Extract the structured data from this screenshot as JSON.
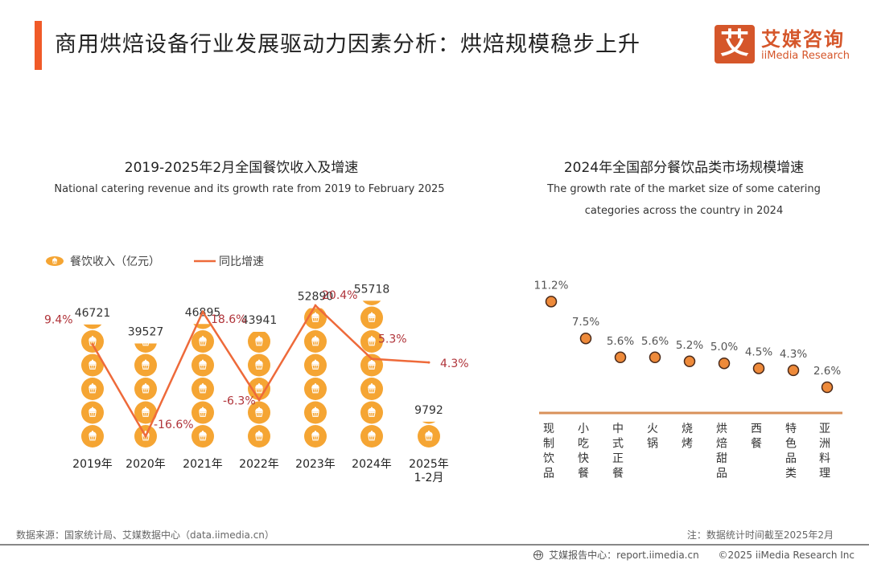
{
  "header": {
    "title": "商用烘焙设备行业发展驱动力因素分析：烘焙规模稳步上升",
    "logo_glyph": "艾",
    "logo_cn": "艾媒咨询",
    "logo_en": "iiMedia Research"
  },
  "colors": {
    "accent": "#f05a28",
    "bar_icon": "#f5a533",
    "line": "#ee6a3a",
    "rate_label": "#b0343a",
    "dot_fill": "#ee8a3a",
    "dot_stroke": "#4a2a1a",
    "axis": "#d9915a"
  },
  "chart_data": [
    {
      "type": "bar",
      "title": "2019-2025年2月全国餐饮收入及增速",
      "subtitle": "National catering revenue and its growth rate from 2019 to February 2025",
      "legend": [
        {
          "name": "餐饮收入（亿元）",
          "marker": "cupcake-icon"
        },
        {
          "name": "同比增速",
          "marker": "line"
        }
      ],
      "legend_position": "top-left",
      "categories": [
        "2019年",
        "2020年",
        "2021年",
        "2022年",
        "2023年",
        "2024年",
        "2025年\n1-2月"
      ],
      "category_labels": [
        [
          "2019年"
        ],
        [
          "2020年"
        ],
        [
          "2021年"
        ],
        [
          "2022年"
        ],
        [
          "2023年"
        ],
        [
          "2024年"
        ],
        [
          "2025年",
          "1-2月"
        ]
      ],
      "series": [
        {
          "name": "餐饮收入（亿元）",
          "kind": "pictorial-bar",
          "values": [
            46721,
            39527,
            46895,
            43941,
            52890,
            55718,
            9792
          ]
        },
        {
          "name": "同比增速",
          "kind": "line",
          "values": [
            9.4,
            -16.6,
            18.6,
            -6.3,
            20.4,
            5.3,
            4.3
          ],
          "labels": [
            "9.4%",
            "-16.6%",
            "18.6%",
            "-6.3%",
            "20.4%",
            "5.3%",
            "4.3%"
          ]
        }
      ],
      "value_labels": [
        "46721",
        "39527",
        "46895",
        "43941",
        "52890",
        "55718",
        "9792"
      ],
      "icon_unit": 9000,
      "grid": false
    },
    {
      "type": "scatter",
      "title": "2024年全国部分餐饮品类市场规模增速",
      "subtitle_lines": [
        "The growth rate of the market size of some catering",
        "categories across the country in 2024"
      ],
      "categories": [
        "现制饮品",
        "小吃快餐",
        "中式正餐",
        "火锅",
        "烧烤",
        "烘焙甜品",
        "西餐",
        "特色品类",
        "亚洲料理"
      ],
      "values": [
        11.2,
        7.5,
        5.6,
        5.6,
        5.2,
        5.0,
        4.5,
        4.3,
        2.6
      ],
      "labels": [
        "11.2%",
        "7.5%",
        "5.6%",
        "5.6%",
        "5.2%",
        "5.0%",
        "4.5%",
        "4.3%",
        "2.6%"
      ],
      "ylim": [
        0,
        12
      ],
      "grid": false
    }
  ],
  "footer": {
    "source": "数据来源：国家统计局、艾媒数据中心（data.iimedia.cn）",
    "note": "注：数据统计时间截至2025年2月",
    "report": "艾媒报告中心：report.iimedia.cn",
    "copyright": "©2025  iiMedia Research  Inc"
  }
}
